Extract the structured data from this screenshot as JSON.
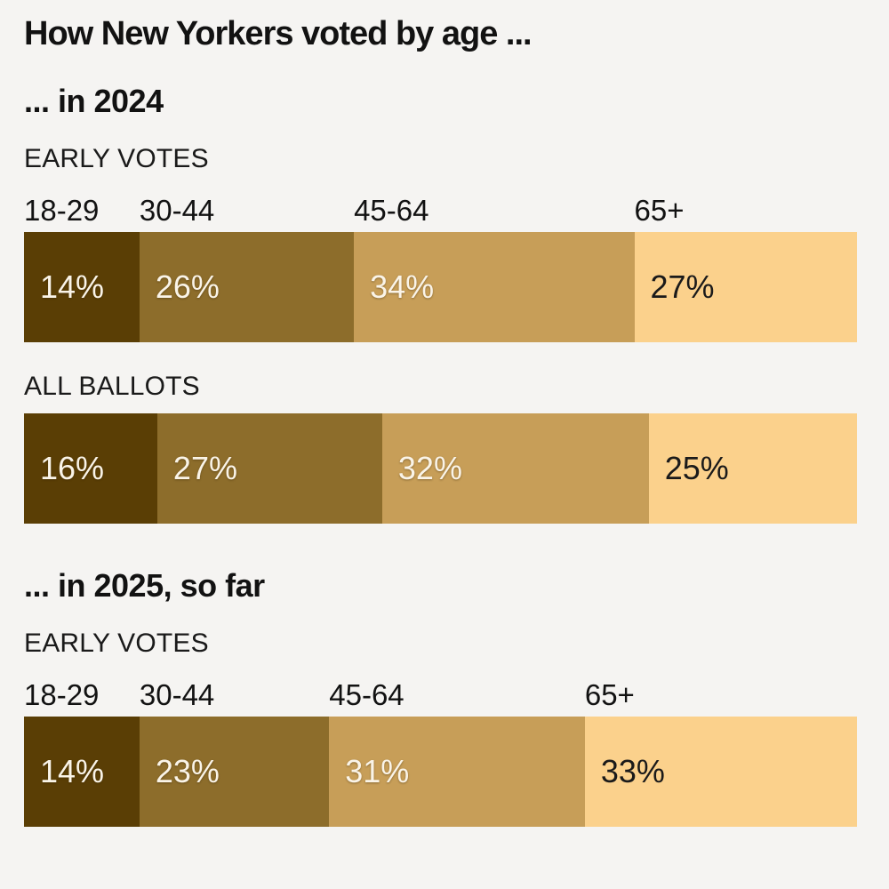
{
  "page_background": "#f5f4f2",
  "chart_data": {
    "type": "bar",
    "orientation": "horizontal-stacked",
    "title": "How New Yorkers voted by age ...",
    "categories": [
      "18-29",
      "30-44",
      "45-64",
      "65+"
    ],
    "value_format": "percent",
    "segment_colors": [
      "#5a3e05",
      "#8d6d2b",
      "#c79e58",
      "#fbd18c"
    ],
    "segment_label_styles": [
      "light",
      "light",
      "light",
      "dark"
    ],
    "xlim": [
      0,
      100
    ],
    "grid": false,
    "legend": "category labels shown above first bar of each section",
    "sections": [
      {
        "heading": "... in 2024",
        "rows": [
          {
            "label": "EARLY VOTES",
            "show_category_labels": true,
            "values": [
              14,
              26,
              34,
              27
            ]
          },
          {
            "label": "ALL BALLOTS",
            "show_category_labels": false,
            "values": [
              16,
              27,
              32,
              25
            ]
          }
        ]
      },
      {
        "heading": "... in 2025, so far",
        "rows": [
          {
            "label": "EARLY VOTES",
            "show_category_labels": true,
            "values": [
              14,
              23,
              31,
              33
            ]
          }
        ]
      }
    ]
  }
}
